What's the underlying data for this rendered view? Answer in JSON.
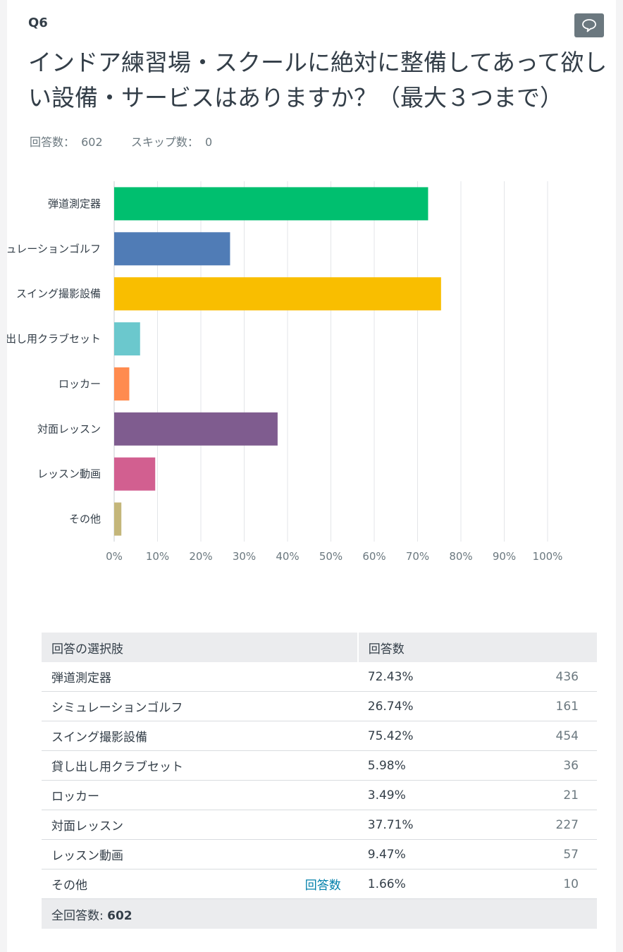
{
  "question": {
    "number": "Q6",
    "title": "インドア練習場・スクールに絶対に整備してあって欲しい設備・サービスはありますか？（最大３つまで）",
    "answered_label": "回答数：",
    "answered_value": "602",
    "skipped_label": "スキップ数：",
    "skipped_value": "0"
  },
  "chart_data": {
    "type": "bar",
    "orientation": "horizontal",
    "categories": [
      "弾道測定器",
      "シミュレーションゴルフ",
      "スイング撮影設備",
      "貸し出し用クラブセット",
      "ロッカー",
      "対面レッスン",
      "レッスン動画",
      "その他"
    ],
    "values": [
      72.43,
      26.74,
      75.42,
      5.98,
      3.49,
      37.71,
      9.47,
      1.66
    ],
    "colors": [
      "#00bf6f",
      "#507cb6",
      "#f9be00",
      "#6bc8cd",
      "#ff8b4f",
      "#7f5c8f",
      "#d25f90",
      "#c4b67a"
    ],
    "xlim": [
      0,
      100
    ],
    "xticks": [
      "0%",
      "10%",
      "20%",
      "30%",
      "40%",
      "50%",
      "60%",
      "70%",
      "80%",
      "90%",
      "100%"
    ],
    "grid": true
  },
  "table": {
    "header_choice": "回答の選択肢",
    "header_responses": "回答数",
    "rows": [
      {
        "choice": "弾道測定器",
        "percent": "72.43%",
        "count": "436"
      },
      {
        "choice": "シミュレーションゴルフ",
        "percent": "26.74%",
        "count": "161"
      },
      {
        "choice": "スイング撮影設備",
        "percent": "75.42%",
        "count": "454"
      },
      {
        "choice": "貸し出し用クラブセット",
        "percent": "5.98%",
        "count": "36"
      },
      {
        "choice": "ロッカー",
        "percent": "3.49%",
        "count": "21"
      },
      {
        "choice": "対面レッスン",
        "percent": "37.71%",
        "count": "227"
      },
      {
        "choice": "レッスン動画",
        "percent": "9.47%",
        "count": "57"
      },
      {
        "choice": "その他",
        "percent": "1.66%",
        "count": "10",
        "link": "回答数"
      }
    ],
    "total_label": "全回答数:",
    "total_value": "602"
  },
  "icons": {
    "comment": "comment-icon"
  }
}
